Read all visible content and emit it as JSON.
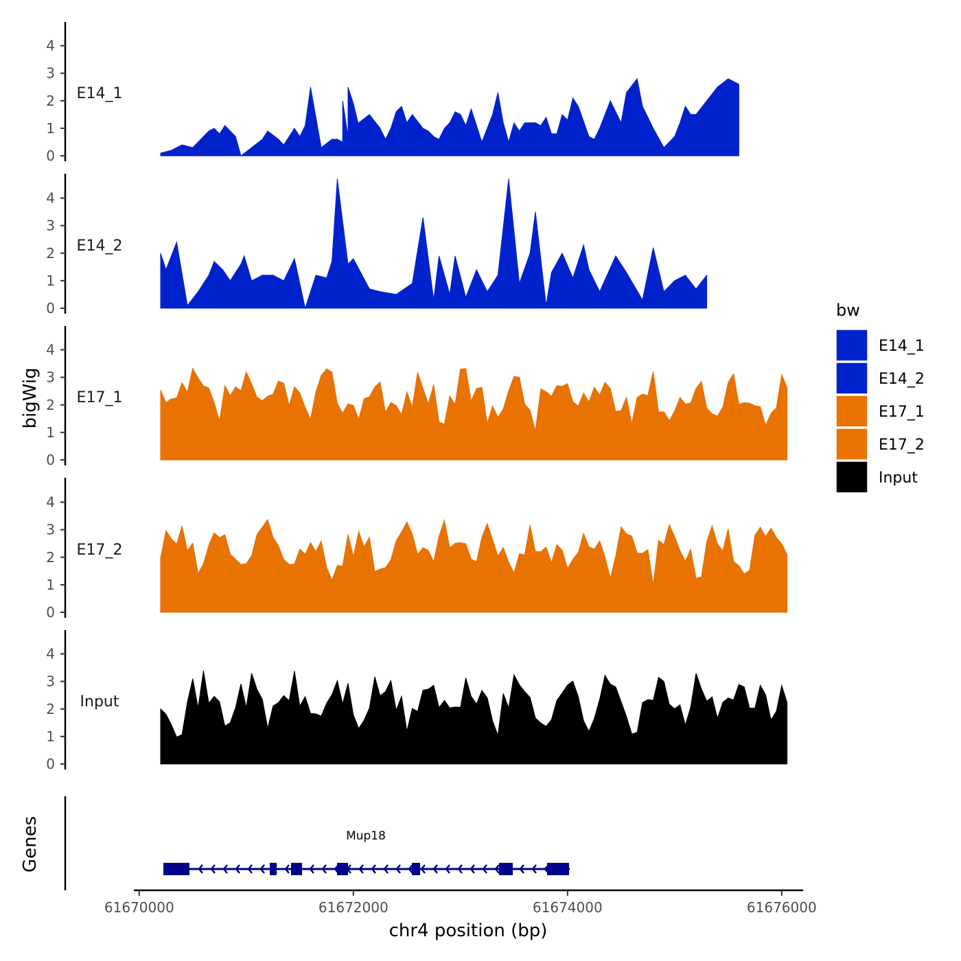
{
  "chart_data": {
    "type": "area",
    "title": "",
    "xlabel": "chr4 position (bp)",
    "ylabel": "bigWig",
    "genes_label": "Genes",
    "xlim": [
      61669950,
      61676200
    ],
    "x_ticks": [
      61670000,
      61672000,
      61674000,
      61676000
    ],
    "x_tick_labels": [
      "61670000",
      "61672000",
      "61674000",
      "61676000"
    ],
    "ylim": [
      0,
      4.9
    ],
    "y_ticks": [
      0,
      1,
      2,
      3,
      4
    ],
    "y_tick_labels": [
      "0",
      "1",
      "2",
      "3",
      "4"
    ],
    "x_start": 61670200,
    "x_step": 75,
    "colors": {
      "E14": "#0022CC",
      "E17": "#E87202",
      "Input": "#000000",
      "gene": "#00008B"
    },
    "legend": {
      "title": "bw",
      "position": "right",
      "entries": [
        {
          "label": "E14_1",
          "color": "#0022CC"
        },
        {
          "label": "E14_2",
          "color": "#0022CC"
        },
        {
          "label": "E17_1",
          "color": "#E87202"
        },
        {
          "label": "E17_2",
          "color": "#E87202"
        },
        {
          "label": "Input",
          "color": "#000000"
        }
      ]
    },
    "series": [
      {
        "name": "E14_1",
        "color": "#0022CC",
        "values": [
          0.1,
          0.2,
          0.4,
          0.3,
          0.9,
          1.0,
          0.8,
          1.1,
          0.7,
          0.0,
          0.3,
          0.6,
          0.9,
          0.6,
          0.4,
          1.0,
          0.7,
          1.1,
          2.5,
          0.3,
          0.6,
          0.6,
          0.5,
          0.7,
          1.1,
          2.0,
          2.5,
          1.9,
          1.2,
          1.5,
          1.0,
          0.6,
          1.0,
          1.6,
          1.8,
          1.2,
          1.5,
          1.0,
          0.9,
          0.7,
          0.6,
          1.0,
          1.2,
          1.6,
          1.5,
          1.1,
          1.7,
          0.5,
          1.5,
          2.3,
          1.2,
          0.5,
          1.2,
          0.9,
          1.2,
          1.2,
          1.1,
          1.4,
          0.8,
          0.8,
          1.5,
          1.3,
          2.1,
          1.8,
          0.7,
          0.6,
          1.0,
          2.0,
          1.6,
          1.2,
          2.3,
          2.8,
          1.8,
          1.0,
          0.3,
          0.7,
          1.2,
          1.8,
          1.5,
          1.5,
          2.0,
          2.5,
          2.8,
          2.6
        ],
        "anchors": [
          61670200,
          61670300,
          61670400,
          61670500,
          61670650,
          61670700,
          61670750,
          61670800,
          61670900,
          61670950,
          61671050,
          61671150,
          61671200,
          61671300,
          61671350,
          61671450,
          61671500,
          61671550,
          61671600,
          61671700,
          61671800,
          61671850,
          61671900,
          61671950,
          61672050,
          61671900,
          61671950,
          61672000,
          61672050,
          61672150,
          61672250,
          61672300,
          61672350,
          61672400,
          61672450,
          61672500,
          61672550,
          61672650,
          61672700,
          61672750,
          61672800,
          61672850,
          61672900,
          61672950,
          61673000,
          61673050,
          61673100,
          61673200,
          61673300,
          61673350,
          61673400,
          61673450,
          61673500,
          61673550,
          61673600,
          61673700,
          61673750,
          61673800,
          61673850,
          61673900,
          61673950,
          61674000,
          61674050,
          61674100,
          61674200,
          61674250,
          61674300,
          61674400,
          61674450,
          61674500,
          61674550,
          61674650,
          61674700,
          61674800,
          61674900,
          61675000,
          61675050,
          61675100,
          61675150,
          61675200,
          61675300,
          61675400,
          61675500,
          61675600
        ]
      },
      {
        "name": "E14_2",
        "color": "#0022CC",
        "values": [
          2.0,
          1.4,
          2.4,
          0.1,
          0.6,
          1.2,
          1.7,
          1.4,
          1.0,
          1.6,
          1.9,
          1.0,
          1.2,
          1.2,
          1.0,
          1.8,
          0.0,
          1.2,
          1.1,
          1.7,
          4.7,
          1.6,
          1.8,
          0.7,
          0.6,
          0.5,
          0.9,
          3.3,
          0.3,
          1.9,
          0.5,
          1.9,
          0.4,
          1.4,
          0.6,
          1.2,
          4.7,
          0.9,
          2.0,
          3.5,
          0.1,
          1.3,
          2.0,
          1.1,
          2.3,
          1.4,
          0.6,
          1.9,
          1.3,
          0.3,
          2.2,
          0.6,
          1.0,
          1.2,
          0.7,
          1.2
        ],
        "anchors": [
          61670200,
          61670250,
          61670350,
          61670450,
          61670550,
          61670650,
          61670700,
          61670780,
          61670850,
          61670950,
          61670980,
          61671050,
          61671150,
          61671250,
          61671350,
          61671450,
          61671550,
          61671650,
          61671750,
          61671800,
          61671850,
          61671950,
          61672000,
          61672150,
          61672250,
          61672400,
          61672550,
          61672650,
          61672750,
          61672800,
          61672900,
          61672950,
          61673050,
          61673150,
          61673250,
          61673350,
          61673450,
          61673550,
          61673650,
          61673700,
          61673800,
          61673850,
          61673950,
          61674050,
          61674150,
          61674200,
          61674300,
          61674450,
          61674550,
          61674700,
          61674800,
          61674900,
          61675000,
          61675100,
          61675200,
          61675300
        ]
      }
    ]
  }
}
